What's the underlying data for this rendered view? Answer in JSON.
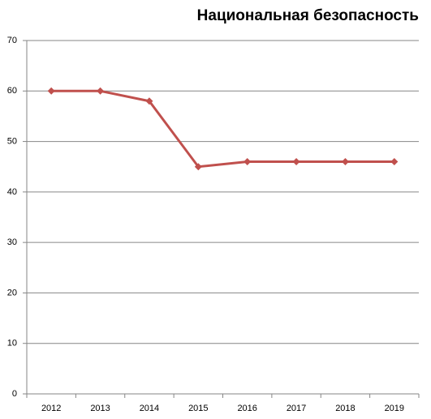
{
  "chart_data": {
    "type": "line",
    "title": "Национальная безопасность",
    "categories": [
      "2012",
      "2013",
      "2014",
      "2015",
      "2016",
      "2017",
      "2018",
      "2019"
    ],
    "series": [
      {
        "color": "#c0504d",
        "values": [
          60,
          60,
          58,
          45,
          46,
          46,
          46,
          46
        ]
      }
    ],
    "ylim": [
      0,
      70
    ],
    "yticks": [
      0,
      10,
      20,
      30,
      40,
      50,
      60,
      70
    ],
    "grid": true
  }
}
